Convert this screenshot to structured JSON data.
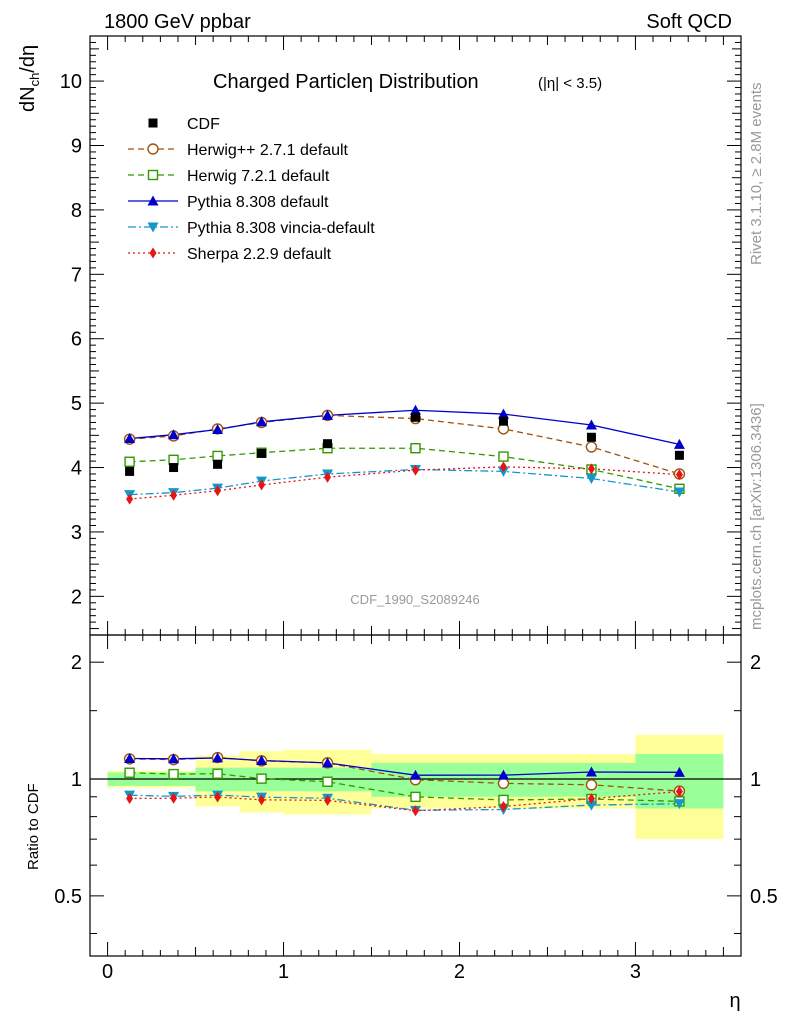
{
  "header": {
    "left": "1800 GeV ppbar",
    "right": "Soft QCD"
  },
  "side_labels": {
    "rivet": "Rivet 3.1.10, ≥ 2.8M events",
    "mcplots": "mcplots.cern.ch [arXiv:1306.3436]"
  },
  "chart_data": {
    "type": "line",
    "title": "Charged Particle η Distribution",
    "title_main": "Charged Particleη Distribution",
    "title_sub": "(|η| < 3.5)",
    "watermark": "CDF_1990_S2089246",
    "ylabel_main": "dN",
    "ylabel_sub": "ch",
    "ylabel_tail": "/dη",
    "ylabel_ratio": "Ratio to CDF",
    "xlabel": "η",
    "xlim": [
      -0.1,
      3.6
    ],
    "ylim_main": [
      1.4,
      10.7
    ],
    "ylim_ratio": [
      0.35,
      2.35
    ],
    "ratio_log_scale": true,
    "x_ticks": [
      "0",
      "1",
      "2",
      "3"
    ],
    "y_ticks_main": [
      "2",
      "3",
      "4",
      "5",
      "6",
      "7",
      "8",
      "9",
      "10"
    ],
    "y_ticks_ratio": [
      "0.5",
      "1",
      "2"
    ],
    "x": [
      0.125,
      0.375,
      0.625,
      0.875,
      1.25,
      1.75,
      2.25,
      2.75,
      3.25
    ],
    "bin_edges": [
      0,
      0.25,
      0.5,
      0.75,
      1.0,
      1.5,
      2.0,
      2.5,
      3.0,
      3.5
    ],
    "band_stat_halfwidth": [
      0.04,
      0.04,
      0.07,
      0.07,
      0.07,
      0.1,
      0.1,
      0.1,
      0.16
    ],
    "band_total_halfwidth": [
      0.05,
      0.05,
      0.15,
      0.18,
      0.19,
      0.16,
      0.16,
      0.16,
      0.3
    ],
    "series": [
      {
        "name": "CDF",
        "color": "#000000",
        "marker": "square",
        "line": "none",
        "values": [
          3.94,
          4.0,
          4.05,
          4.22,
          4.37,
          4.78,
          4.72,
          4.47,
          4.19
        ]
      },
      {
        "name": "Herwig++ 2.7.1 default",
        "color": "#a0520d",
        "marker": "open-circle",
        "line": "dashed",
        "values": [
          4.44,
          4.49,
          4.6,
          4.7,
          4.81,
          4.76,
          4.6,
          4.32,
          3.9
        ]
      },
      {
        "name": "Herwig 7.2.1 default",
        "color": "#339900",
        "marker": "open-square",
        "line": "dashed",
        "values": [
          4.09,
          4.12,
          4.18,
          4.23,
          4.3,
          4.3,
          4.17,
          3.97,
          3.67
        ]
      },
      {
        "name": "Pythia 8.308 default",
        "color": "#0000cc",
        "marker": "triangle-up",
        "line": "solid",
        "values": [
          4.45,
          4.51,
          4.59,
          4.71,
          4.81,
          4.89,
          4.83,
          4.66,
          4.36
        ]
      },
      {
        "name": "Pythia 8.308 vincia-default",
        "color": "#1496c8",
        "marker": "triangle-down",
        "line": "dashdot",
        "values": [
          3.58,
          3.61,
          3.68,
          3.79,
          3.9,
          3.97,
          3.94,
          3.83,
          3.62
        ]
      },
      {
        "name": "Sherpa 2.2.9 default",
        "color": "#e61414",
        "marker": "diamond",
        "line": "dotted",
        "values": [
          3.51,
          3.57,
          3.64,
          3.73,
          3.85,
          3.96,
          4.01,
          3.98,
          3.89
        ]
      }
    ]
  }
}
